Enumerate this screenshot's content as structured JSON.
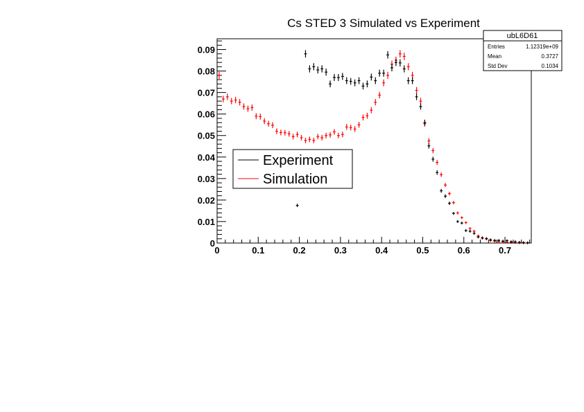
{
  "chart_data": {
    "type": "scatter",
    "title": "Cs STED 3 Simulated vs Experiment",
    "xlabel": "",
    "ylabel": "",
    "xlim": [
      0,
      0.764
    ],
    "ylim": [
      0,
      0.095
    ],
    "bin_width": 0.01,
    "x_ticks": [
      "0",
      "0.1",
      "0.2",
      "0.3",
      "0.4",
      "0.5",
      "0.6",
      "0.7"
    ],
    "x_tick_values": [
      0,
      0.1,
      0.2,
      0.3,
      0.4,
      0.5,
      0.6,
      0.7
    ],
    "y_ticks": [
      "0",
      "0.01",
      "0.02",
      "0.03",
      "0.04",
      "0.05",
      "0.06",
      "0.07",
      "0.08",
      "0.09"
    ],
    "y_tick_values": [
      0,
      0.01,
      0.02,
      0.03,
      0.04,
      0.05,
      0.06,
      0.07,
      0.08,
      0.09
    ],
    "grid": false,
    "legend_placement": "center-left",
    "stats_box": {
      "name": "ubL6D61",
      "rows": [
        {
          "label": "Entries",
          "value": "1.12319e+09"
        },
        {
          "label": "Mean",
          "value": "0.3727"
        },
        {
          "label": "Std Dev",
          "value": "0.1034"
        }
      ]
    },
    "series": [
      {
        "name": "Experiment",
        "color": "#000000",
        "x": [
          0.195,
          0.215,
          0.225,
          0.235,
          0.245,
          0.255,
          0.265,
          0.275,
          0.285,
          0.295,
          0.305,
          0.315,
          0.325,
          0.335,
          0.345,
          0.355,
          0.365,
          0.375,
          0.385,
          0.395,
          0.405,
          0.415,
          0.425,
          0.435,
          0.445,
          0.455,
          0.465,
          0.475,
          0.485,
          0.495,
          0.505,
          0.515,
          0.525,
          0.535,
          0.545,
          0.555,
          0.565,
          0.575,
          0.585,
          0.595,
          0.605,
          0.615,
          0.625,
          0.635,
          0.645,
          0.655,
          0.665,
          0.675,
          0.685,
          0.695,
          0.705,
          0.715,
          0.725,
          0.735,
          0.745,
          0.755
        ],
        "y": [
          0.0175,
          0.088,
          0.081,
          0.082,
          0.0805,
          0.081,
          0.0795,
          0.074,
          0.077,
          0.077,
          0.0775,
          0.0755,
          0.0752,
          0.0745,
          0.0755,
          0.073,
          0.074,
          0.0772,
          0.0755,
          0.079,
          0.079,
          0.0875,
          0.0815,
          0.084,
          0.0838,
          0.081,
          0.0755,
          0.0755,
          0.068,
          0.0635,
          0.056,
          0.0452,
          0.039,
          0.0328,
          0.0243,
          0.0218,
          0.0185,
          0.0138,
          0.01,
          0.0093,
          0.0058,
          0.0055,
          0.0045,
          0.0028,
          0.0023,
          0.0021,
          0.0015,
          0.0012,
          0.0012,
          0.0009,
          0.0011,
          0.0006,
          0.0006,
          0.0003,
          0.0002,
          0.0001
        ]
      },
      {
        "name": "Simulation",
        "color": "#ff0000",
        "x": [
          0.005,
          0.015,
          0.025,
          0.035,
          0.045,
          0.055,
          0.065,
          0.075,
          0.085,
          0.095,
          0.105,
          0.115,
          0.125,
          0.135,
          0.145,
          0.155,
          0.165,
          0.175,
          0.185,
          0.195,
          0.205,
          0.215,
          0.225,
          0.235,
          0.245,
          0.255,
          0.265,
          0.275,
          0.285,
          0.295,
          0.305,
          0.315,
          0.325,
          0.335,
          0.345,
          0.355,
          0.365,
          0.375,
          0.385,
          0.395,
          0.405,
          0.415,
          0.425,
          0.435,
          0.445,
          0.455,
          0.465,
          0.475,
          0.485,
          0.495,
          0.505,
          0.515,
          0.525,
          0.535,
          0.545,
          0.555,
          0.565,
          0.575,
          0.585,
          0.595,
          0.605,
          0.615,
          0.625,
          0.635,
          0.645,
          0.655,
          0.665,
          0.675,
          0.685,
          0.695,
          0.705,
          0.715,
          0.725,
          0.735,
          0.745,
          0.755
        ],
        "y": [
          0.078,
          0.067,
          0.068,
          0.066,
          0.0665,
          0.0655,
          0.0635,
          0.0625,
          0.063,
          0.059,
          0.0588,
          0.0567,
          0.0555,
          0.0548,
          0.052,
          0.0514,
          0.0513,
          0.0508,
          0.0495,
          0.0505,
          0.049,
          0.0477,
          0.0482,
          0.0477,
          0.0495,
          0.049,
          0.05,
          0.0503,
          0.0517,
          0.05,
          0.0505,
          0.054,
          0.0537,
          0.053,
          0.055,
          0.0584,
          0.0592,
          0.0618,
          0.0655,
          0.0688,
          0.0745,
          0.078,
          0.0832,
          0.085,
          0.088,
          0.0868,
          0.082,
          0.078,
          0.071,
          0.066,
          0.0555,
          0.0475,
          0.043,
          0.0375,
          0.0318,
          0.027,
          0.023,
          0.0188,
          0.014,
          0.0118,
          0.0095,
          0.0068,
          0.0055,
          0.0033,
          0.0025,
          0.0019,
          0.0012,
          0.0009,
          0.0007,
          0.0005,
          0.0004,
          0.0003,
          0.0002,
          0.0002,
          0.0001,
          0.0001
        ]
      }
    ]
  }
}
